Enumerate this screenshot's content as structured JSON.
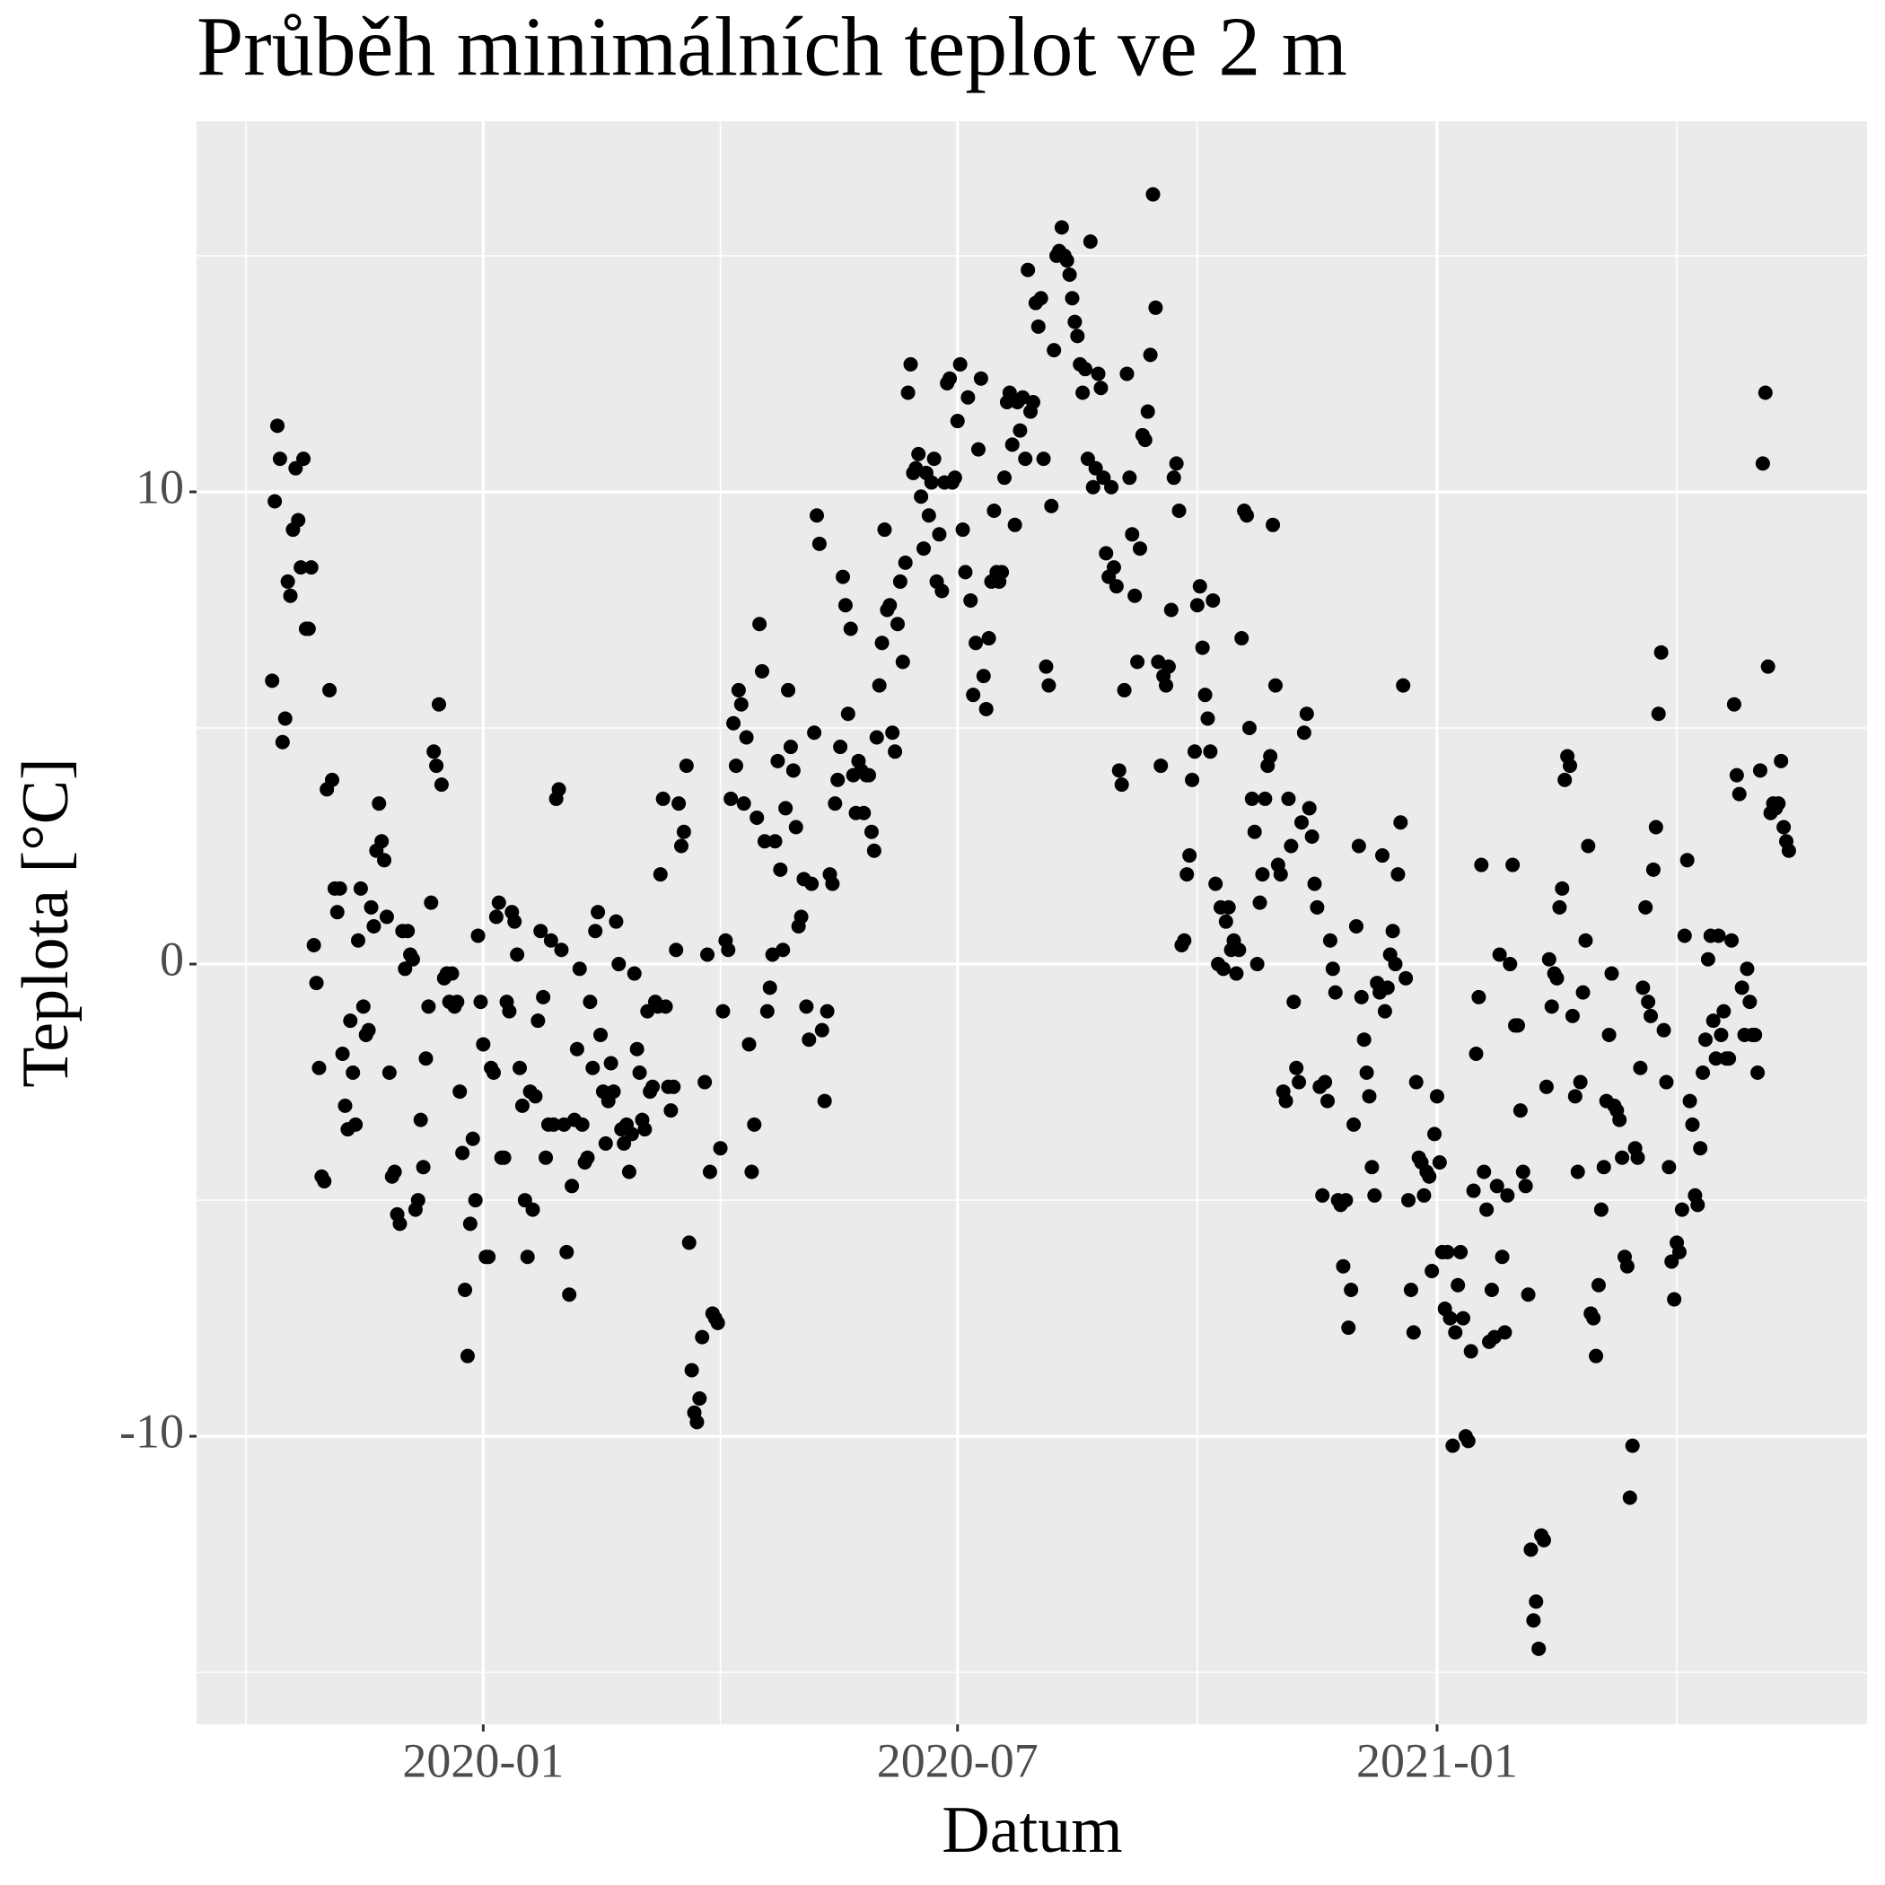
{
  "chart_data": {
    "type": "scatter",
    "title": "Průběh minimálních teplot ve 2 m",
    "x_label": "Datum",
    "y_label": "Teplota [°C]",
    "color": "#000000",
    "grid": true,
    "xlim": [
      "2019-09-13",
      "2021-06-15"
    ],
    "xticks": [
      "2020-01",
      "2020-07",
      "2021-01"
    ],
    "ylim": [
      -16.1,
      17.85
    ],
    "yticks": [
      -10,
      0,
      10
    ],
    "x": [
      "2019-10-12",
      "2019-10-13",
      "2019-10-14",
      "2019-10-15",
      "2019-10-16",
      "2019-10-17",
      "2019-10-18",
      "2019-10-19",
      "2019-10-20",
      "2019-10-21",
      "2019-10-22",
      "2019-10-23",
      "2019-10-24",
      "2019-10-25",
      "2019-10-26",
      "2019-10-27",
      "2019-10-28",
      "2019-10-29",
      "2019-10-30",
      "2019-10-31",
      "2019-11-01",
      "2019-11-02",
      "2019-11-03",
      "2019-11-04",
      "2019-11-05",
      "2019-11-06",
      "2019-11-07",
      "2019-11-08",
      "2019-11-09",
      "2019-11-10",
      "2019-11-11",
      "2019-11-12",
      "2019-11-13",
      "2019-11-14",
      "2019-11-15",
      "2019-11-16",
      "2019-11-17",
      "2019-11-18",
      "2019-11-19",
      "2019-11-20",
      "2019-11-21",
      "2019-11-22",
      "2019-11-23",
      "2019-11-24",
      "2019-11-25",
      "2019-11-26",
      "2019-11-27",
      "2019-11-28",
      "2019-11-29",
      "2019-11-30",
      "2019-12-01",
      "2019-12-02",
      "2019-12-03",
      "2019-12-04",
      "2019-12-05",
      "2019-12-06",
      "2019-12-07",
      "2019-12-08",
      "2019-12-09",
      "2019-12-10",
      "2019-12-11",
      "2019-12-12",
      "2019-12-13",
      "2019-12-14",
      "2019-12-15",
      "2019-12-16",
      "2019-12-17",
      "2019-12-18",
      "2019-12-19",
      "2019-12-20",
      "2019-12-21",
      "2019-12-22",
      "2019-12-23",
      "2019-12-24",
      "2019-12-25",
      "2019-12-26",
      "2019-12-27",
      "2019-12-28",
      "2019-12-29",
      "2019-12-30",
      "2019-12-31",
      "2020-01-01",
      "2020-01-02",
      "2020-01-03",
      "2020-01-04",
      "2020-01-05",
      "2020-01-06",
      "2020-01-07",
      "2020-01-08",
      "2020-01-09",
      "2020-01-10",
      "2020-01-11",
      "2020-01-12",
      "2020-01-13",
      "2020-01-14",
      "2020-01-15",
      "2020-01-16",
      "2020-01-17",
      "2020-01-18",
      "2020-01-19",
      "2020-01-20",
      "2020-01-21",
      "2020-01-22",
      "2020-01-23",
      "2020-01-24",
      "2020-01-25",
      "2020-01-26",
      "2020-01-27",
      "2020-01-28",
      "2020-01-29",
      "2020-01-30",
      "2020-01-31",
      "2020-02-01",
      "2020-02-02",
      "2020-02-03",
      "2020-02-04",
      "2020-02-05",
      "2020-02-06",
      "2020-02-07",
      "2020-02-08",
      "2020-02-09",
      "2020-02-10",
      "2020-02-11",
      "2020-02-12",
      "2020-02-13",
      "2020-02-14",
      "2020-02-15",
      "2020-02-16",
      "2020-02-17",
      "2020-02-18",
      "2020-02-19",
      "2020-02-20",
      "2020-02-21",
      "2020-02-22",
      "2020-02-23",
      "2020-02-24",
      "2020-02-25",
      "2020-02-26",
      "2020-02-27",
      "2020-02-28",
      "2020-02-29",
      "2020-03-01",
      "2020-03-02",
      "2020-03-03",
      "2020-03-04",
      "2020-03-05",
      "2020-03-06",
      "2020-03-07",
      "2020-03-08",
      "2020-03-09",
      "2020-03-10",
      "2020-03-11",
      "2020-03-12",
      "2020-03-13",
      "2020-03-14",
      "2020-03-15",
      "2020-03-16",
      "2020-03-17",
      "2020-03-18",
      "2020-03-19",
      "2020-03-20",
      "2020-03-21",
      "2020-03-22",
      "2020-03-23",
      "2020-03-24",
      "2020-03-25",
      "2020-03-26",
      "2020-03-27",
      "2020-03-28",
      "2020-03-29",
      "2020-03-30",
      "2020-03-31",
      "2020-04-01",
      "2020-04-02",
      "2020-04-03",
      "2020-04-04",
      "2020-04-05",
      "2020-04-06",
      "2020-04-07",
      "2020-04-08",
      "2020-04-09",
      "2020-04-10",
      "2020-04-11",
      "2020-04-12",
      "2020-04-13",
      "2020-04-14",
      "2020-04-15",
      "2020-04-16",
      "2020-04-17",
      "2020-04-18",
      "2020-04-19",
      "2020-04-20",
      "2020-04-21",
      "2020-04-22",
      "2020-04-23",
      "2020-04-24",
      "2020-04-25",
      "2020-04-26",
      "2020-04-27",
      "2020-04-28",
      "2020-04-29",
      "2020-04-30",
      "2020-05-01",
      "2020-05-02",
      "2020-05-03",
      "2020-05-04",
      "2020-05-05",
      "2020-05-06",
      "2020-05-07",
      "2020-05-08",
      "2020-05-09",
      "2020-05-10",
      "2020-05-11",
      "2020-05-12",
      "2020-05-13",
      "2020-05-14",
      "2020-05-15",
      "2020-05-16",
      "2020-05-17",
      "2020-05-18",
      "2020-05-19",
      "2020-05-20",
      "2020-05-21",
      "2020-05-22",
      "2020-05-23",
      "2020-05-24",
      "2020-05-25",
      "2020-05-26",
      "2020-05-27",
      "2020-05-28",
      "2020-05-29",
      "2020-05-30",
      "2020-05-31",
      "2020-06-01",
      "2020-06-02",
      "2020-06-03",
      "2020-06-04",
      "2020-06-05",
      "2020-06-06",
      "2020-06-07",
      "2020-06-08",
      "2020-06-09",
      "2020-06-10",
      "2020-06-11",
      "2020-06-12",
      "2020-06-13",
      "2020-06-14",
      "2020-06-15",
      "2020-06-16",
      "2020-06-17",
      "2020-06-18",
      "2020-06-19",
      "2020-06-20",
      "2020-06-21",
      "2020-06-22",
      "2020-06-23",
      "2020-06-24",
      "2020-06-25",
      "2020-06-26",
      "2020-06-27",
      "2020-06-28",
      "2020-06-29",
      "2020-06-30",
      "2020-07-01",
      "2020-07-02",
      "2020-07-03",
      "2020-07-04",
      "2020-07-05",
      "2020-07-06",
      "2020-07-07",
      "2020-07-08",
      "2020-07-09",
      "2020-07-10",
      "2020-07-11",
      "2020-07-12",
      "2020-07-13",
      "2020-07-14",
      "2020-07-15",
      "2020-07-16",
      "2020-07-17",
      "2020-07-18",
      "2020-07-19",
      "2020-07-20",
      "2020-07-21",
      "2020-07-22",
      "2020-07-23",
      "2020-07-24",
      "2020-07-25",
      "2020-07-26",
      "2020-07-27",
      "2020-07-28",
      "2020-07-29",
      "2020-07-30",
      "2020-07-31",
      "2020-08-01",
      "2020-08-02",
      "2020-08-03",
      "2020-08-04",
      "2020-08-05",
      "2020-08-06",
      "2020-08-07",
      "2020-08-08",
      "2020-08-09",
      "2020-08-10",
      "2020-08-11",
      "2020-08-12",
      "2020-08-13",
      "2020-08-14",
      "2020-08-15",
      "2020-08-16",
      "2020-08-17",
      "2020-08-18",
      "2020-08-19",
      "2020-08-20",
      "2020-08-21",
      "2020-08-22",
      "2020-08-23",
      "2020-08-24",
      "2020-08-25",
      "2020-08-26",
      "2020-08-27",
      "2020-08-28",
      "2020-08-29",
      "2020-08-30",
      "2020-08-31",
      "2020-09-01",
      "2020-09-02",
      "2020-09-03",
      "2020-09-04",
      "2020-09-05",
      "2020-09-06",
      "2020-09-07",
      "2020-09-08",
      "2020-09-09",
      "2020-09-10",
      "2020-09-11",
      "2020-09-12",
      "2020-09-13",
      "2020-09-14",
      "2020-09-15",
      "2020-09-16",
      "2020-09-17",
      "2020-09-18",
      "2020-09-19",
      "2020-09-20",
      "2020-09-21",
      "2020-09-22",
      "2020-09-23",
      "2020-09-24",
      "2020-09-25",
      "2020-09-26",
      "2020-09-27",
      "2020-09-28",
      "2020-09-29",
      "2020-09-30",
      "2020-10-01",
      "2020-10-02",
      "2020-10-03",
      "2020-10-04",
      "2020-10-05",
      "2020-10-06",
      "2020-10-07",
      "2020-10-08",
      "2020-10-09",
      "2020-10-10",
      "2020-10-11",
      "2020-10-12",
      "2020-10-13",
      "2020-10-14",
      "2020-10-15",
      "2020-10-16",
      "2020-10-17",
      "2020-10-18",
      "2020-10-19",
      "2020-10-20",
      "2020-10-21",
      "2020-10-22",
      "2020-10-23",
      "2020-10-24",
      "2020-10-25",
      "2020-10-26",
      "2020-10-27",
      "2020-10-28",
      "2020-10-29",
      "2020-10-30",
      "2020-10-31",
      "2020-11-01",
      "2020-11-02",
      "2020-11-03",
      "2020-11-04",
      "2020-11-05",
      "2020-11-06",
      "2020-11-07",
      "2020-11-08",
      "2020-11-09",
      "2020-11-10",
      "2020-11-11",
      "2020-11-12",
      "2020-11-13",
      "2020-11-14",
      "2020-11-15",
      "2020-11-16",
      "2020-11-17",
      "2020-11-18",
      "2020-11-19",
      "2020-11-20",
      "2020-11-21",
      "2020-11-22",
      "2020-11-23",
      "2020-11-24",
      "2020-11-25",
      "2020-11-26",
      "2020-11-27",
      "2020-11-28",
      "2020-11-29",
      "2020-11-30",
      "2020-12-01",
      "2020-12-02",
      "2020-12-03",
      "2020-12-04",
      "2020-12-05",
      "2020-12-06",
      "2020-12-07",
      "2020-12-08",
      "2020-12-09",
      "2020-12-10",
      "2020-12-11",
      "2020-12-12",
      "2020-12-13",
      "2020-12-14",
      "2020-12-15",
      "2020-12-16",
      "2020-12-17",
      "2020-12-18",
      "2020-12-19",
      "2020-12-20",
      "2020-12-21",
      "2020-12-22",
      "2020-12-23",
      "2020-12-24",
      "2020-12-25",
      "2020-12-26",
      "2020-12-27",
      "2020-12-28",
      "2020-12-29",
      "2020-12-30",
      "2020-12-31",
      "2021-01-01",
      "2021-01-02",
      "2021-01-03",
      "2021-01-04",
      "2021-01-05",
      "2021-01-06",
      "2021-01-07",
      "2021-01-08",
      "2021-01-09",
      "2021-01-10",
      "2021-01-11",
      "2021-01-12",
      "2021-01-13",
      "2021-01-14",
      "2021-01-15",
      "2021-01-16",
      "2021-01-17",
      "2021-01-18",
      "2021-01-19",
      "2021-01-20",
      "2021-01-21",
      "2021-01-22",
      "2021-01-23",
      "2021-01-24",
      "2021-01-25",
      "2021-01-26",
      "2021-01-27",
      "2021-01-28",
      "2021-01-29",
      "2021-01-30",
      "2021-01-31",
      "2021-02-01",
      "2021-02-02",
      "2021-02-03",
      "2021-02-04",
      "2021-02-05",
      "2021-02-06",
      "2021-02-07",
      "2021-02-08",
      "2021-02-09",
      "2021-02-10",
      "2021-02-11",
      "2021-02-12",
      "2021-02-13",
      "2021-02-14",
      "2021-02-15",
      "2021-02-16",
      "2021-02-17",
      "2021-02-18",
      "2021-02-19",
      "2021-02-20",
      "2021-02-21",
      "2021-02-22",
      "2021-02-23",
      "2021-02-24",
      "2021-02-25",
      "2021-02-26",
      "2021-02-27",
      "2021-02-28",
      "2021-03-01",
      "2021-03-02",
      "2021-03-03",
      "2021-03-04",
      "2021-03-05",
      "2021-03-06",
      "2021-03-07",
      "2021-03-08",
      "2021-03-09",
      "2021-03-10",
      "2021-03-11",
      "2021-03-12",
      "2021-03-13",
      "2021-03-14",
      "2021-03-15",
      "2021-03-16",
      "2021-03-17",
      "2021-03-18",
      "2021-03-19",
      "2021-03-20",
      "2021-03-21",
      "2021-03-22",
      "2021-03-23",
      "2021-03-24",
      "2021-03-25",
      "2021-03-26",
      "2021-03-27",
      "2021-03-28",
      "2021-03-29",
      "2021-03-30",
      "2021-03-31",
      "2021-04-01",
      "2021-04-02",
      "2021-04-03",
      "2021-04-04",
      "2021-04-05",
      "2021-04-06",
      "2021-04-07",
      "2021-04-08",
      "2021-04-09",
      "2021-04-10",
      "2021-04-11",
      "2021-04-12",
      "2021-04-13",
      "2021-04-14",
      "2021-04-15",
      "2021-04-16",
      "2021-04-17",
      "2021-04-18",
      "2021-04-19",
      "2021-04-20",
      "2021-04-21",
      "2021-04-22",
      "2021-04-23",
      "2021-04-24",
      "2021-04-25",
      "2021-04-26",
      "2021-04-27",
      "2021-04-28",
      "2021-04-29",
      "2021-04-30",
      "2021-05-01",
      "2021-05-02",
      "2021-05-03",
      "2021-05-04",
      "2021-05-05",
      "2021-05-06",
      "2021-05-07",
      "2021-05-08",
      "2021-05-09",
      "2021-05-10",
      "2021-05-11",
      "2021-05-12",
      "2021-05-13",
      "2021-05-14",
      "2021-05-15",
      "2021-05-16"
    ],
    "values": [
      6.0,
      9.8,
      11.4,
      10.7,
      4.7,
      5.2,
      8.1,
      7.8,
      9.2,
      10.5,
      9.4,
      8.4,
      10.7,
      7.1,
      7.1,
      8.4,
      0.4,
      -0.4,
      -2.2,
      -4.5,
      -4.6,
      3.7,
      5.8,
      3.9,
      1.6,
      1.1,
      1.6,
      -1.9,
      -3.0,
      -3.5,
      -1.2,
      -2.3,
      -3.4,
      0.5,
      1.6,
      -0.9,
      -1.5,
      -1.4,
      1.2,
      0.8,
      2.4,
      3.4,
      2.6,
      2.2,
      1.0,
      -2.3,
      -4.5,
      -4.4,
      -5.3,
      -5.5,
      0.7,
      -0.1,
      0.7,
      0.2,
      0.1,
      -5.2,
      -5.0,
      -3.3,
      -4.3,
      -2.0,
      -0.9,
      1.3,
      4.5,
      4.2,
      5.5,
      3.8,
      -0.3,
      -0.2,
      -0.8,
      -0.2,
      -0.9,
      -0.8,
      -2.7,
      -4.0,
      -6.9,
      -8.3,
      -5.5,
      -3.7,
      -5.0,
      0.6,
      -0.8,
      -1.7,
      -6.2,
      -6.2,
      -2.2,
      -2.3,
      1.0,
      1.3,
      -4.1,
      -4.1,
      -0.8,
      -1.0,
      1.1,
      0.9,
      0.2,
      -2.2,
      -3.0,
      -5.0,
      -6.2,
      -2.7,
      -5.2,
      -2.8,
      -1.2,
      0.7,
      -0.7,
      -4.1,
      -3.4,
      0.5,
      -3.4,
      3.5,
      3.7,
      0.3,
      -3.4,
      -6.1,
      -7.0,
      -4.7,
      -3.3,
      -1.8,
      -0.1,
      -3.4,
      -4.2,
      -4.1,
      -0.8,
      -2.2,
      0.7,
      1.1,
      -1.5,
      -2.7,
      -3.8,
      -2.9,
      -2.1,
      -2.7,
      0.9,
      0.0,
      -3.5,
      -3.8,
      -3.4,
      -4.4,
      -3.6,
      -0.2,
      -1.8,
      -2.3,
      -3.3,
      -3.5,
      -1.0,
      -2.7,
      -2.6,
      -0.8,
      -0.9,
      1.9,
      3.5,
      -0.9,
      -2.6,
      -3.1,
      -2.6,
      0.3,
      3.4,
      2.5,
      2.8,
      4.2,
      -5.9,
      -8.6,
      -9.5,
      -9.7,
      -9.2,
      -7.9,
      -2.5,
      0.2,
      -4.4,
      -7.4,
      -7.5,
      -7.6,
      -3.9,
      -1.0,
      0.5,
      0.3,
      3.5,
      5.1,
      4.2,
      5.8,
      5.5,
      3.4,
      4.8,
      -1.7,
      -4.4,
      -3.4,
      3.1,
      7.2,
      6.2,
      2.6,
      -1.0,
      -0.5,
      0.2,
      2.6,
      4.3,
      2.0,
      0.3,
      3.3,
      5.8,
      4.6,
      4.1,
      2.9,
      0.8,
      1.0,
      1.8,
      -0.9,
      -1.6,
      1.7,
      4.9,
      9.5,
      8.9,
      -1.4,
      -2.9,
      -1.0,
      1.9,
      1.7,
      3.4,
      3.9,
      4.6,
      8.2,
      7.6,
      5.3,
      7.1,
      4.0,
      3.2,
      4.3,
      4.1,
      3.2,
      4.0,
      4.0,
      2.8,
      2.4,
      4.8,
      5.9,
      6.8,
      9.2,
      7.5,
      7.6,
      4.9,
      4.5,
      7.2,
      8.1,
      6.4,
      8.5,
      12.1,
      12.7,
      10.4,
      10.5,
      10.8,
      9.9,
      8.8,
      10.4,
      9.5,
      10.2,
      10.7,
      8.1,
      9.1,
      7.9,
      10.2,
      12.3,
      12.4,
      10.2,
      10.3,
      11.5,
      12.7,
      9.2,
      8.3,
      12.0,
      7.7,
      5.7,
      6.8,
      10.9,
      12.4,
      6.1,
      5.4,
      6.9,
      8.1,
      9.6,
      8.3,
      8.1,
      8.3,
      10.3,
      11.9,
      12.1,
      11.0,
      9.3,
      11.9,
      11.3,
      12.0,
      10.7,
      14.7,
      11.7,
      11.9,
      14.0,
      13.5,
      14.1,
      10.7,
      6.3,
      5.9,
      9.7,
      13.0,
      15.0,
      15.1,
      15.6,
      15.0,
      14.9,
      14.6,
      14.1,
      13.6,
      13.3,
      12.7,
      12.1,
      12.6,
      10.7,
      15.3,
      10.1,
      10.5,
      12.5,
      12.2,
      10.3,
      8.7,
      8.2,
      10.1,
      8.4,
      8.0,
      4.1,
      3.8,
      5.8,
      12.5,
      10.3,
      9.1,
      7.8,
      6.4,
      8.8,
      11.2,
      11.1,
      11.7,
      12.9,
      16.3,
      13.9,
      6.4,
      4.2,
      6.1,
      5.9,
      6.3,
      7.5,
      10.3,
      10.6,
      9.6,
      0.4,
      0.5,
      1.9,
      2.3,
      3.9,
      4.5,
      7.6,
      8.0,
      6.7,
      5.7,
      5.2,
      4.5,
      7.7,
      1.7,
      0.0,
      1.2,
      -0.1,
      0.9,
      1.2,
      0.3,
      0.5,
      -0.2,
      0.3,
      6.9,
      9.6,
      9.5,
      5.0,
      3.5,
      2.8,
      0.0,
      1.3,
      1.9,
      3.5,
      4.2,
      4.4,
      9.3,
      5.9,
      2.1,
      1.9,
      -2.7,
      -2.9,
      3.5,
      2.5,
      -0.8,
      -2.2,
      -2.5,
      3.0,
      4.9,
      5.3,
      3.3,
      2.7,
      1.7,
      1.2,
      -2.6,
      -4.9,
      -2.5,
      -2.9,
      0.5,
      -0.1,
      -0.6,
      -5.0,
      -5.1,
      -6.4,
      -5.0,
      -7.7,
      -6.9,
      -3.4,
      0.8,
      2.5,
      -0.7,
      -1.6,
      -2.3,
      -2.8,
      -4.3,
      -4.9,
      -0.4,
      -0.6,
      2.3,
      -1.0,
      -0.5,
      0.2,
      0.7,
      0.0,
      1.9,
      3.0,
      5.9,
      -0.3,
      -5.0,
      -6.9,
      -7.8,
      -2.5,
      -4.1,
      -4.2,
      -4.9,
      -4.4,
      -4.5,
      -6.5,
      -3.6,
      -2.8,
      -4.2,
      -6.1,
      -7.3,
      -6.1,
      -7.5,
      -10.2,
      -7.8,
      -6.8,
      -6.1,
      -7.5,
      -10.0,
      -10.1,
      -8.2,
      -4.8,
      -1.9,
      -0.7,
      2.1,
      -4.4,
      -5.2,
      -8.0,
      -6.9,
      -7.9,
      -4.7,
      0.2,
      -6.2,
      -7.8,
      -4.9,
      0.0,
      2.1,
      -1.3,
      -1.3,
      -3.1,
      -4.4,
      -4.7,
      -7.0,
      -12.4,
      -13.9,
      -13.5,
      -14.5,
      -12.1,
      -12.2,
      -2.6,
      0.1,
      -0.9,
      -0.2,
      -0.3,
      1.2,
      1.6,
      3.9,
      4.4,
      4.2,
      -1.1,
      -2.8,
      -4.4,
      -2.5,
      -0.6,
      0.5,
      2.5,
      -7.4,
      -7.5,
      -8.3,
      -6.8,
      -5.2,
      -4.3,
      -2.9,
      -1.5,
      -0.2,
      -3.0,
      -3.1,
      -3.3,
      -4.1,
      -6.2,
      -6.4,
      -11.3,
      -10.2,
      -3.9,
      -4.1,
      -2.2,
      -0.5,
      1.2,
      -0.8,
      -1.1,
      2.0,
      2.9,
      5.3,
      6.6,
      -1.4,
      -2.5,
      -4.3,
      -6.3,
      -7.1,
      -5.9,
      -6.1,
      -5.2,
      0.6,
      2.2,
      -2.9,
      -3.4,
      -4.9,
      -5.1,
      -3.9,
      -2.3,
      -1.6,
      0.1,
      0.6,
      -1.2,
      -2.0,
      0.6,
      -1.5,
      -1.0,
      -2.0,
      -2.0,
      0.5,
      5.5,
      4.0,
      3.6,
      -0.5,
      -1.5,
      -0.1,
      -0.8,
      -1.5,
      -1.5,
      -2.3,
      4.1,
      10.6,
      12.1,
      6.3,
      3.2,
      3.4,
      3.3,
      3.4,
      4.3,
      2.9,
      2.6,
      2.4
    ]
  }
}
